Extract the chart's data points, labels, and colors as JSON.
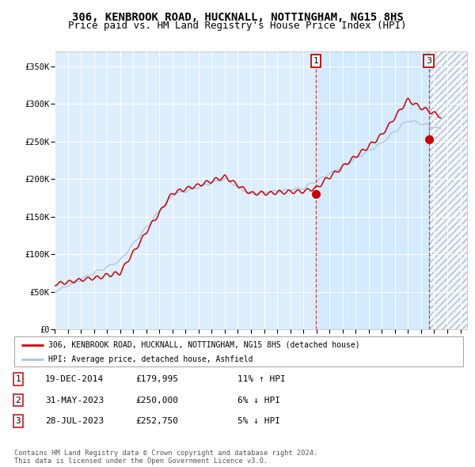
{
  "title": "306, KENBROOK ROAD, HUCKNALL, NOTTINGHAM, NG15 8HS",
  "subtitle": "Price paid vs. HM Land Registry's House Price Index (HPI)",
  "ylim": [
    0,
    370000
  ],
  "xlim_start": 1995,
  "xlim_end": 2026.5,
  "yticks": [
    0,
    50000,
    100000,
    150000,
    200000,
    250000,
    300000,
    350000
  ],
  "ytick_labels": [
    "£0",
    "£50K",
    "£100K",
    "£150K",
    "£200K",
    "£250K",
    "£300K",
    "£350K"
  ],
  "hpi_color": "#aac4e0",
  "price_color": "#cc0000",
  "sale1_date": 2014.96,
  "sale1_price": 179995,
  "sale2_date": 2023.42,
  "sale2_price": 250000,
  "sale3_date": 2023.58,
  "sale3_price": 252750,
  "background_chart": "#ddeeff",
  "grid_color": "#ffffff",
  "title_fontsize": 10,
  "subtitle_fontsize": 9,
  "legend_label_red": "306, KENBROOK ROAD, HUCKNALL, NOTTINGHAM, NG15 8HS (detached house)",
  "legend_label_blue": "HPI: Average price, detached house, Ashfield",
  "table_rows": [
    [
      "1",
      "19-DEC-2014",
      "£179,995",
      "11% ↑ HPI"
    ],
    [
      "2",
      "31-MAY-2023",
      "£250,000",
      "6% ↓ HPI"
    ],
    [
      "3",
      "28-JUL-2023",
      "£252,750",
      "5% ↓ HPI"
    ]
  ],
  "footer": "Contains HM Land Registry data © Crown copyright and database right 2024.\nThis data is licensed under the Open Government Licence v3.0."
}
